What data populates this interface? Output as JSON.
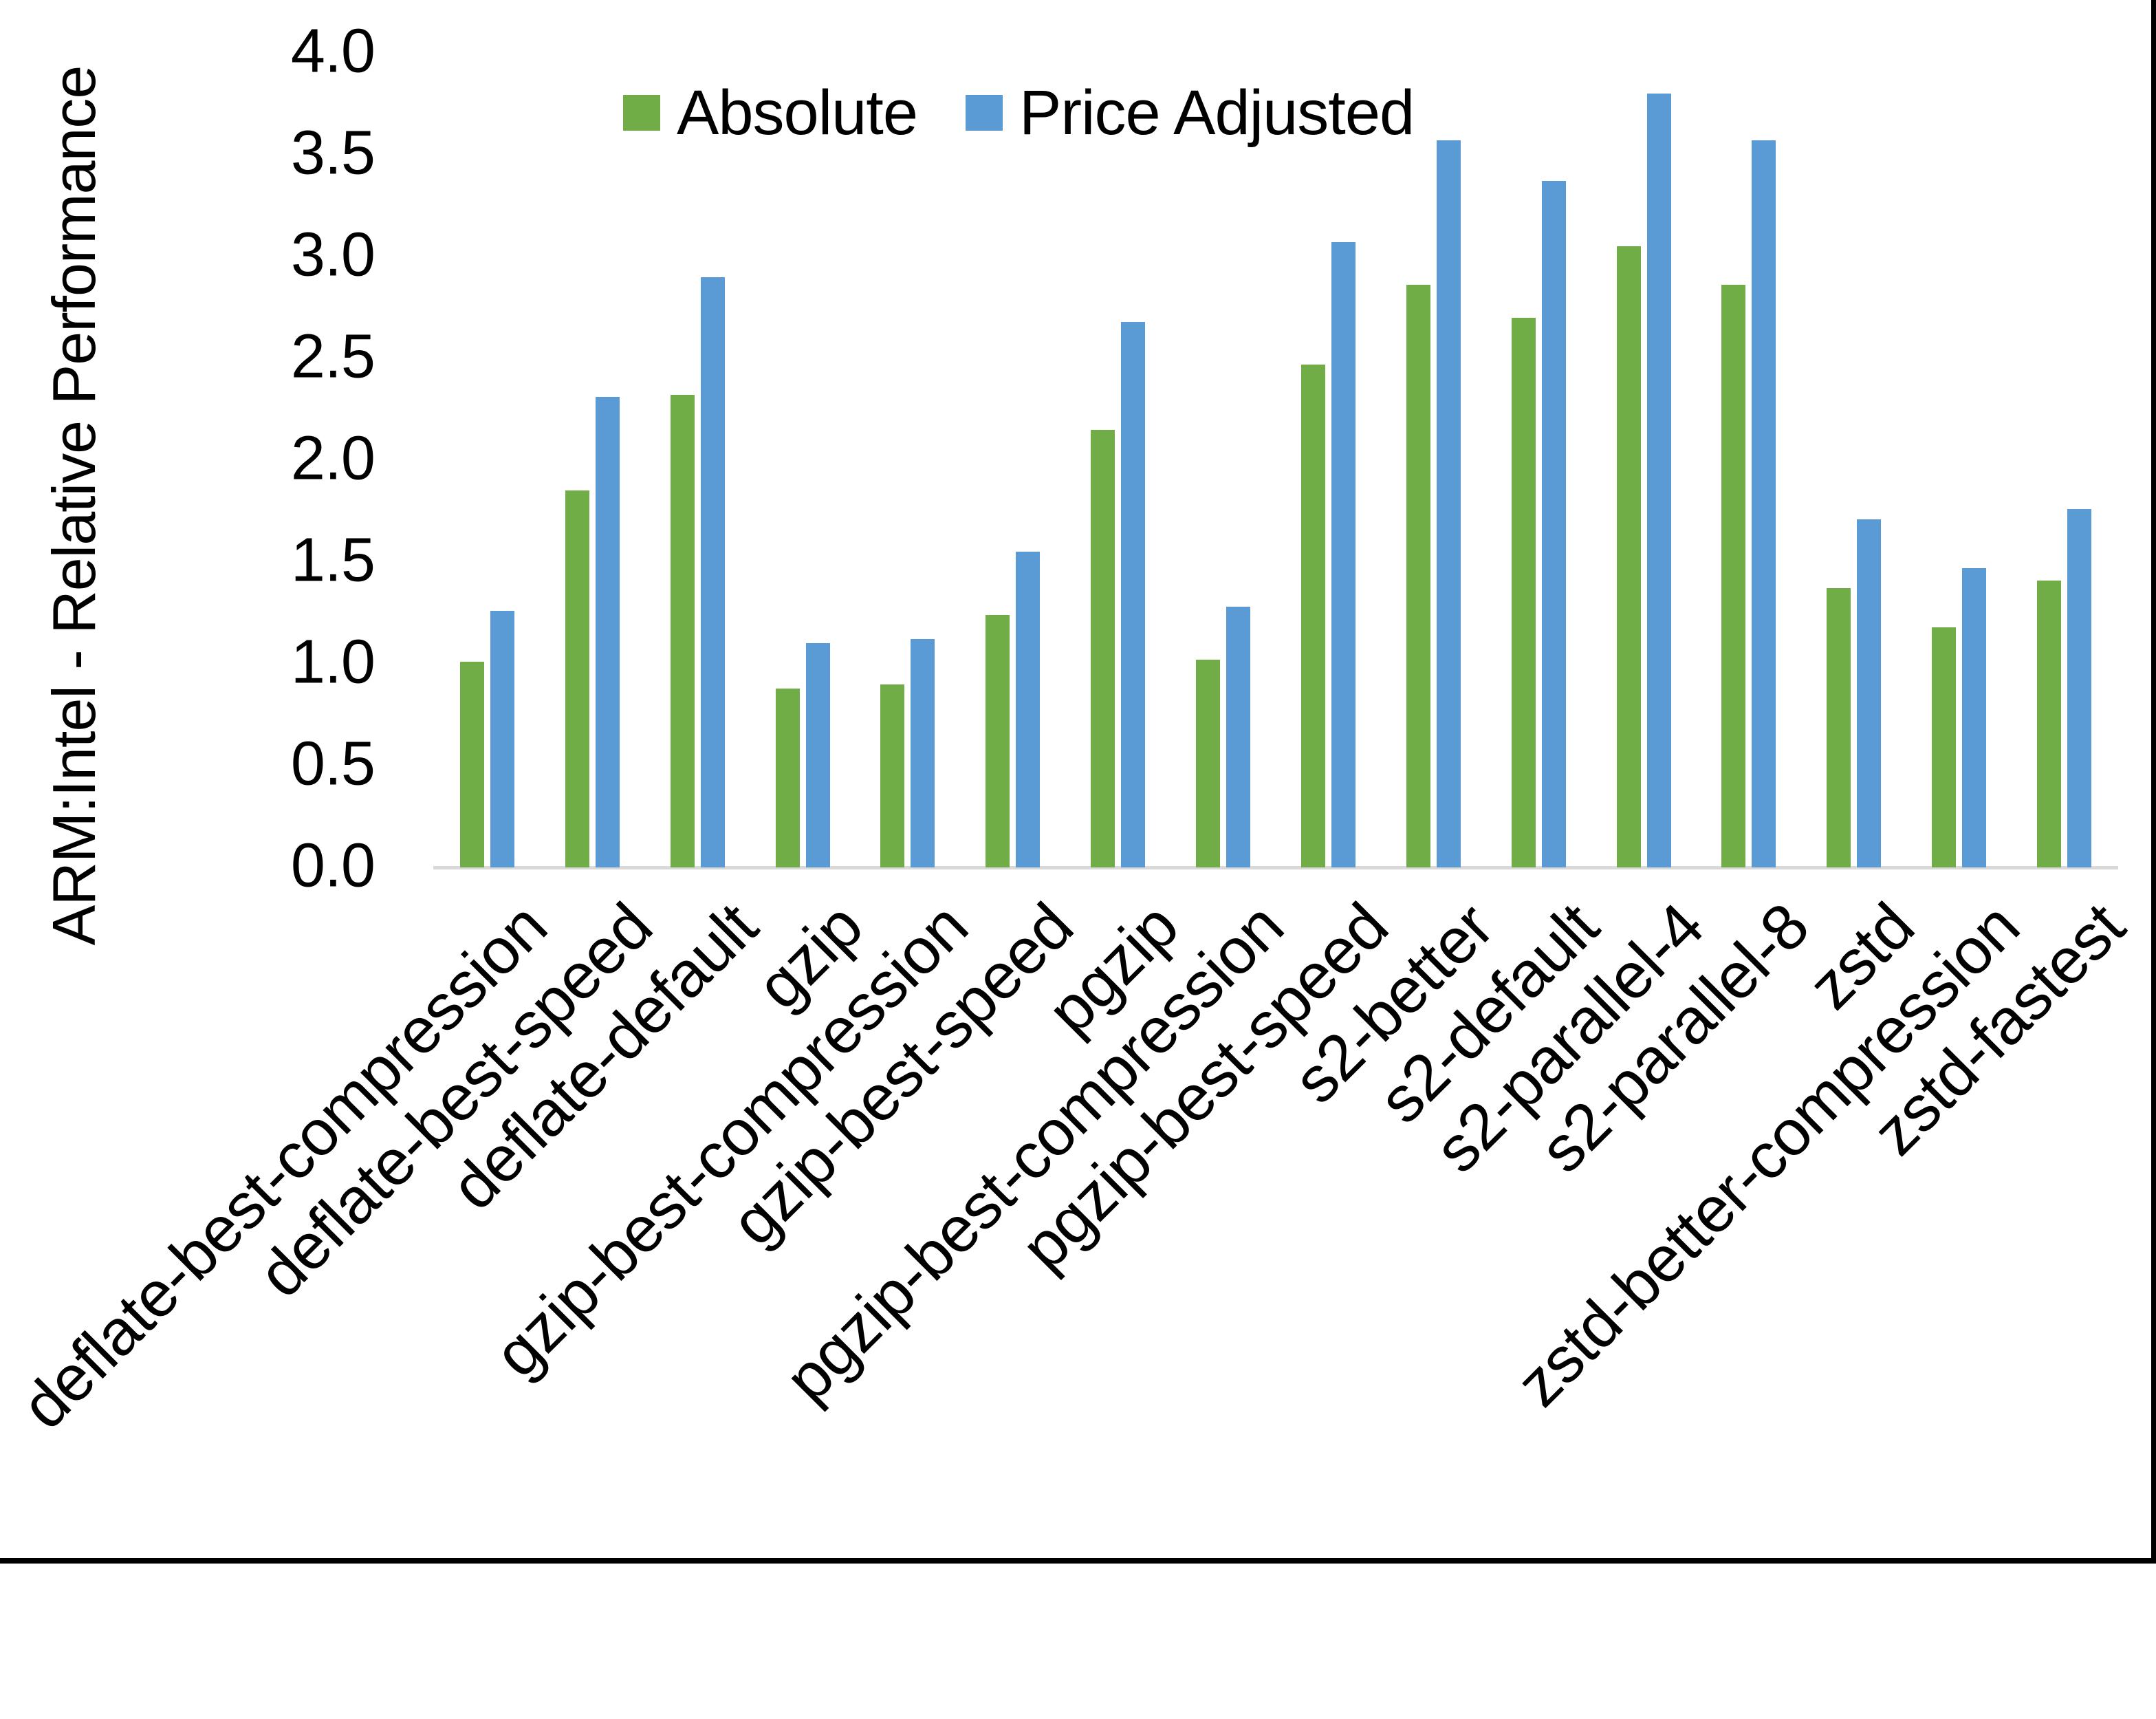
{
  "page": {
    "background": "#ffffff",
    "border_color": "#000000",
    "axis_line_color": "#D9D9D9",
    "text_color": "#000000"
  },
  "chart_data": {
    "type": "bar",
    "title": "",
    "xlabel": "",
    "ylabel": "ARM:Intel - Relative Performance",
    "ylim": [
      0.0,
      4.0
    ],
    "ytick_step": 0.5,
    "yticks": [
      "0.0",
      "0.5",
      "1.0",
      "1.5",
      "2.0",
      "2.5",
      "3.0",
      "3.5",
      "4.0"
    ],
    "grid": false,
    "legend_position": "top-center",
    "categories": [
      "deflate-best-compression",
      "deflate-best-speed",
      "deflate-default",
      "gzip",
      "gzip-best-compression",
      "gzip-best-speed",
      "pgzip",
      "pgzip-best-compression",
      "pgzip-best-speed",
      "s2-better",
      "s2-default",
      "s2-parallel-4",
      "s2-parallel-8",
      "zstd",
      "zstd-better-compression",
      "zstd-fastest"
    ],
    "series": [
      {
        "name": "Absolute",
        "color": "#70AD47",
        "values": [
          1.01,
          1.85,
          2.32,
          0.88,
          0.9,
          1.24,
          2.15,
          1.02,
          2.47,
          2.86,
          2.7,
          3.05,
          2.86,
          1.37,
          1.18,
          1.41
        ]
      },
      {
        "name": "Price Adjusted",
        "color": "#5B9BD5",
        "values": [
          1.26,
          2.31,
          2.9,
          1.1,
          1.12,
          1.55,
          2.68,
          1.28,
          3.07,
          3.57,
          3.37,
          3.8,
          3.57,
          1.71,
          1.47,
          1.76
        ]
      }
    ]
  }
}
